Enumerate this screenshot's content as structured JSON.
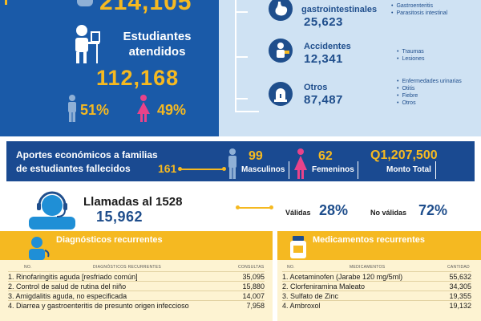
{
  "top_left": {
    "top_number": "214,105",
    "estudiantes_title": "Estudiantes atendidos",
    "estudiantes_number": "112,168",
    "male_pct": "51%",
    "female_pct": "49%"
  },
  "categories": [
    {
      "title": "gastrointestinales",
      "number": "25,623",
      "subitems": [
        "Gastroenteritis",
        "Parasitosis intestinal"
      ]
    },
    {
      "title": "Accidentes",
      "number": "12,341",
      "subitems": [
        "Traumas",
        "Lesiones"
      ]
    },
    {
      "title": "Otros",
      "number": "87,487",
      "subitems": [
        "Enfermedades urinarias",
        "Otitis",
        "Fiebre",
        "Otros"
      ]
    }
  ],
  "aportes": {
    "text": "Aportes económicos a familias de estudiantes fallecidos",
    "total": "161",
    "male_count": "99",
    "male_label": "Masculinos",
    "female_count": "62",
    "female_label": "Femeninos",
    "amount": "Q1,207,500",
    "amount_label": "Monto Total"
  },
  "llamadas": {
    "title": "Llamadas al 1528",
    "number": "15,962",
    "validas_label": "Válidas",
    "validas_pct": "28%",
    "no_validas_label": "No válidas",
    "no_validas_pct": "72%"
  },
  "diagnosticos": {
    "title": "Diagnósticos recurrentes",
    "col_no": "NO.",
    "col_desc": "DIAGNÓSTICOS RECURRENTES",
    "col_val": "CONSULTAS",
    "rows": [
      {
        "label": "1. Rinofaringitis aguda [resfriado común]",
        "value": "35,095"
      },
      {
        "label": "2. Control de salud de rutina del niño",
        "value": "15,880"
      },
      {
        "label": "3. Amigdalitis aguda, no especificada",
        "value": "14,007"
      },
      {
        "label": "4. Diarrea y gastroenteritis de presunto origen infeccioso",
        "value": "7,958"
      }
    ]
  },
  "medicamentos": {
    "title": "Medicamentos recurrentes",
    "col_no": "NO.",
    "col_desc": "MEDICAMENTOS",
    "col_val": "CANTIDAD",
    "rows": [
      {
        "label": "1. Acetaminofen (Jarabe 120 mg/5ml)",
        "value": "55,632"
      },
      {
        "label": "2. Clorfeniramina Maleato",
        "value": "34,305"
      },
      {
        "label": "3. Sulfato de Zinc",
        "value": "19,355"
      },
      {
        "label": "4. Ambroxol",
        "value": "19,132"
      }
    ]
  }
}
